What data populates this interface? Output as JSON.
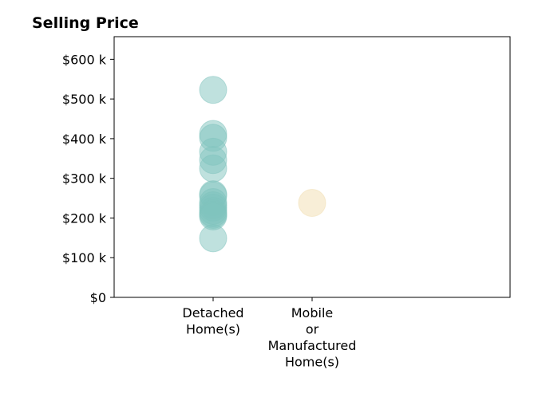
{
  "chart_data": {
    "type": "scatter",
    "title": "Selling Price",
    "xlabel": "",
    "ylabel": "",
    "categories": [
      [
        "Detached",
        "Home(s)"
      ],
      [
        "Mobile",
        "or",
        "Manufactured",
        "Home(s)"
      ]
    ],
    "y_ticks": [
      {
        "value": 0,
        "label": "$0"
      },
      {
        "value": 100000,
        "label": "$100 k"
      },
      {
        "value": 200000,
        "label": "$200 k"
      },
      {
        "value": 300000,
        "label": "$300 k"
      },
      {
        "value": 400000,
        "label": "$400 k"
      },
      {
        "value": 500000,
        "label": "$500 k"
      },
      {
        "value": 600000,
        "label": "$600 k"
      }
    ],
    "ylim": [
      0,
      657000
    ],
    "grid": false,
    "series": [
      {
        "category_index": 0,
        "color": "#7fc4bd",
        "values": [
          523000,
          412000,
          402000,
          367000,
          346000,
          325000,
          260000,
          257000,
          240000,
          232000,
          226000,
          218000,
          212000,
          208000,
          204000,
          149000
        ]
      },
      {
        "category_index": 1,
        "color": "#f2deb0",
        "values": [
          238000
        ]
      }
    ]
  }
}
